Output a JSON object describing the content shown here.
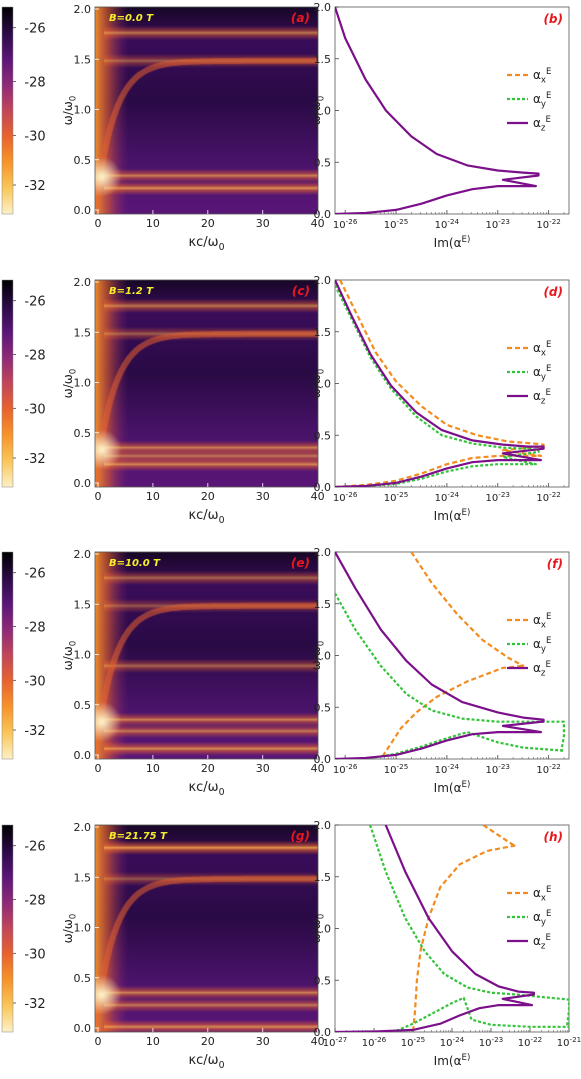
{
  "chart_data": [
    {
      "panel": "(a)",
      "type": "heatmap",
      "annotation": "B=0.0 T",
      "xlabel": "κc/ω0",
      "ylabel": "ω/ω0",
      "xlim": [
        0,
        40
      ],
      "ylim": [
        0,
        2.0
      ],
      "xticks": [
        "0",
        "10",
        "20",
        "30",
        "40"
      ],
      "yticks": [
        "0.0",
        "0.5",
        "1.0",
        "1.5",
        "2.0"
      ],
      "colorbar": {
        "ticks": [
          "-26",
          "-28",
          "-30",
          "-32"
        ]
      },
      "resonances": [
        {
          "omega": 0.25,
          "strength": 0.85
        },
        {
          "omega": 0.37,
          "strength": 0.75
        },
        {
          "omega": 1.48,
          "strength": 0.55
        },
        {
          "omega": 1.75,
          "strength": 0.7
        }
      ]
    },
    {
      "panel": "(b)",
      "type": "line",
      "xscale": "log",
      "xlabel": "Im(α^E)",
      "ylabel": "ω/ω0",
      "xlim": [
        -26.2,
        -21.6
      ],
      "ylim": [
        0,
        2.0
      ],
      "xticks": [
        "10^-26",
        "10^-25",
        "10^-24",
        "10^-23",
        "10^-22"
      ],
      "yticks": [
        "0.0",
        "0.5",
        "1.0",
        "1.5",
        "2.0"
      ],
      "legend": {
        "position": "right",
        "entries": [
          "α_x^E",
          "α_y^E",
          "α_z^E"
        ]
      },
      "series": [
        {
          "name": "α_z^E",
          "upper": [
            [
              -26.2,
              2.0
            ],
            [
              -26.0,
              1.7
            ],
            [
              -25.6,
              1.3
            ],
            [
              -25.2,
              1.0
            ],
            [
              -24.7,
              0.75
            ],
            [
              -24.2,
              0.58
            ],
            [
              -23.6,
              0.47
            ],
            [
              -23.0,
              0.42
            ],
            [
              -22.5,
              0.4
            ],
            [
              -22.2,
              0.39
            ]
          ],
          "lower": [
            [
              -26.2,
              0.0
            ],
            [
              -25.6,
              0.01
            ],
            [
              -25.0,
              0.04
            ],
            [
              -24.5,
              0.1
            ],
            [
              -24.0,
              0.18
            ],
            [
              -23.5,
              0.24
            ],
            [
              -23.0,
              0.27
            ]
          ],
          "loop_top": 0.39,
          "loop_low": 0.27,
          "loop_right": -22.2,
          "loop_tip": -22.9
        }
      ]
    },
    {
      "panel": "(c)",
      "type": "heatmap",
      "annotation": "B=1.2 T",
      "xlabel": "κc/ω0",
      "ylabel": "ω/ω0",
      "xlim": [
        0,
        40
      ],
      "ylim": [
        0,
        2.0
      ],
      "xticks": [
        "0",
        "10",
        "20",
        "30",
        "40"
      ],
      "yticks": [
        "0.0",
        "0.5",
        "1.0",
        "1.5",
        "2.0"
      ],
      "colorbar": {
        "ticks": [
          "-26",
          "-28",
          "-30",
          "-32"
        ]
      },
      "resonances": [
        {
          "omega": 0.22,
          "strength": 0.8
        },
        {
          "omega": 0.3,
          "strength": 0.7
        },
        {
          "omega": 0.38,
          "strength": 0.75
        },
        {
          "omega": 1.48,
          "strength": 0.55
        },
        {
          "omega": 1.75,
          "strength": 0.7
        }
      ]
    },
    {
      "panel": "(d)",
      "type": "line",
      "xscale": "log",
      "xlabel": "Im(α^E)",
      "ylabel": "ω/ω0",
      "xlim": [
        -26.2,
        -21.6
      ],
      "ylim": [
        0,
        2.0
      ],
      "xticks": [
        "10^-26",
        "10^-25",
        "10^-24",
        "10^-23",
        "10^-22"
      ],
      "yticks": [
        "0.0",
        "0.5",
        "1.0",
        "1.5",
        "2.0"
      ],
      "legend": {
        "position": "right",
        "entries": [
          "α_x^E",
          "α_y^E",
          "α_z^E"
        ]
      },
      "series": [
        {
          "name": "α_x^E",
          "upper": [
            [
              -26.1,
              2.0
            ],
            [
              -25.8,
              1.7
            ],
            [
              -25.4,
              1.3
            ],
            [
              -25.0,
              1.02
            ],
            [
              -24.5,
              0.78
            ],
            [
              -24.0,
              0.6
            ],
            [
              -23.4,
              0.5
            ],
            [
              -22.8,
              0.44
            ],
            [
              -22.3,
              0.42
            ],
            [
              -22.1,
              0.41
            ]
          ],
          "lower": [
            [
              -26.2,
              0.0
            ],
            [
              -25.6,
              0.02
            ],
            [
              -25.0,
              0.06
            ],
            [
              -24.5,
              0.13
            ],
            [
              -24.0,
              0.22
            ],
            [
              -23.5,
              0.28
            ],
            [
              -23.0,
              0.3
            ]
          ],
          "loop_top": 0.41,
          "loop_low": 0.3,
          "loop_right": -22.1,
          "loop_tip": -22.9
        },
        {
          "name": "α_y^E",
          "upper": [
            [
              -26.2,
              1.95
            ],
            [
              -25.9,
              1.65
            ],
            [
              -25.5,
              1.25
            ],
            [
              -25.1,
              0.95
            ],
            [
              -24.6,
              0.68
            ],
            [
              -24.1,
              0.5
            ],
            [
              -23.5,
              0.42
            ],
            [
              -22.9,
              0.38
            ],
            [
              -22.4,
              0.37
            ],
            [
              -22.2,
              0.36
            ]
          ],
          "lower": [
            [
              -26.2,
              0.0
            ],
            [
              -25.6,
              0.01
            ],
            [
              -25.0,
              0.03
            ],
            [
              -24.5,
              0.08
            ],
            [
              -24.0,
              0.15
            ],
            [
              -23.5,
              0.2
            ],
            [
              -23.0,
              0.22
            ]
          ],
          "loop_top": 0.36,
          "loop_low": 0.22,
          "loop_right": -22.2,
          "loop_tip": -22.9
        },
        {
          "name": "α_z^E",
          "upper": [
            [
              -26.2,
              2.0
            ],
            [
              -25.9,
              1.68
            ],
            [
              -25.5,
              1.28
            ],
            [
              -25.1,
              0.98
            ],
            [
              -24.6,
              0.72
            ],
            [
              -24.1,
              0.55
            ],
            [
              -23.5,
              0.45
            ],
            [
              -22.9,
              0.41
            ],
            [
              -22.4,
              0.39
            ],
            [
              -22.1,
              0.39
            ]
          ],
          "lower": [
            [
              -26.2,
              0.0
            ],
            [
              -25.6,
              0.01
            ],
            [
              -25.0,
              0.04
            ],
            [
              -24.5,
              0.1
            ],
            [
              -24.0,
              0.18
            ],
            [
              -23.5,
              0.24
            ],
            [
              -23.0,
              0.26
            ]
          ],
          "loop_top": 0.39,
          "loop_low": 0.26,
          "loop_right": -22.1,
          "loop_tip": -22.9
        }
      ]
    },
    {
      "panel": "(e)",
      "type": "heatmap",
      "annotation": "B=10.0 T",
      "xlabel": "κc/ω0",
      "ylabel": "ω/ω0",
      "xlim": [
        0,
        40
      ],
      "ylim": [
        0,
        2.0
      ],
      "xticks": [
        "0",
        "10",
        "20",
        "30",
        "40"
      ],
      "yticks": [
        "0.0",
        "0.5",
        "1.0",
        "1.5",
        "2.0"
      ],
      "colorbar": {
        "ticks": [
          "-26",
          "-28",
          "-30",
          "-32"
        ]
      },
      "resonances": [
        {
          "omega": 0.1,
          "strength": 0.8
        },
        {
          "omega": 0.27,
          "strength": 0.7
        },
        {
          "omega": 0.38,
          "strength": 0.75
        },
        {
          "omega": 0.9,
          "strength": 0.6
        },
        {
          "omega": 1.48,
          "strength": 0.5
        },
        {
          "omega": 1.75,
          "strength": 0.6
        }
      ]
    },
    {
      "panel": "(f)",
      "type": "line",
      "xscale": "log",
      "xlabel": "Im(α^E)",
      "ylabel": "ω/ω0",
      "xlim": [
        -26.2,
        -21.6
      ],
      "ylim": [
        0,
        2.0
      ],
      "xticks": [
        "10^-26",
        "10^-25",
        "10^-24",
        "10^-23",
        "10^-22"
      ],
      "yticks": [
        "0.0",
        "0.5",
        "1.0",
        "1.5",
        "2.0"
      ],
      "legend": {
        "position": "right",
        "entries": [
          "α_x^E",
          "α_y^E",
          "α_z^E"
        ]
      },
      "series": [
        {
          "name": "α_x^E",
          "upper": [
            [
              -24.7,
              2.0
            ],
            [
              -24.3,
              1.7
            ],
            [
              -23.8,
              1.4
            ],
            [
              -23.3,
              1.15
            ],
            [
              -22.8,
              0.98
            ],
            [
              -22.5,
              0.9
            ]
          ],
          "lower": [
            [
              -25.3,
              0.0
            ],
            [
              -25.1,
              0.15
            ],
            [
              -24.9,
              0.3
            ],
            [
              -24.6,
              0.45
            ],
            [
              -24.2,
              0.6
            ],
            [
              -23.6,
              0.75
            ],
            [
              -22.9,
              0.88
            ],
            [
              -22.5,
              0.9
            ]
          ],
          "loop_top": 0.9,
          "loop_low": 0.9,
          "loop_right": -22.5,
          "loop_tip": -22.5
        },
        {
          "name": "α_y^E",
          "upper": [
            [
              -26.2,
              1.6
            ],
            [
              -25.8,
              1.25
            ],
            [
              -25.3,
              0.9
            ],
            [
              -24.8,
              0.63
            ],
            [
              -24.3,
              0.47
            ],
            [
              -23.7,
              0.39
            ],
            [
              -23.0,
              0.36
            ],
            [
              -22.3,
              0.36
            ],
            [
              -21.7,
              0.36
            ]
          ],
          "lower": [
            [
              -25.6,
              0.0
            ],
            [
              -25.0,
              0.05
            ],
            [
              -24.5,
              0.12
            ],
            [
              -24.0,
              0.2
            ],
            [
              -23.6,
              0.26
            ],
            [
              -23.0,
              0.16
            ],
            [
              -22.5,
              0.11
            ],
            [
              -21.7,
              0.08
            ]
          ],
          "loop_top": 0.36,
          "loop_low": 0.08,
          "loop_right": -21.7,
          "loop_tip": -21.7
        },
        {
          "name": "α_z^E",
          "upper": [
            [
              -26.2,
              2.0
            ],
            [
              -25.8,
              1.65
            ],
            [
              -25.3,
              1.25
            ],
            [
              -24.8,
              0.95
            ],
            [
              -24.3,
              0.72
            ],
            [
              -23.7,
              0.55
            ],
            [
              -23.0,
              0.45
            ],
            [
              -22.5,
              0.4
            ],
            [
              -22.1,
              0.38
            ]
          ],
          "lower": [
            [
              -26.2,
              0.0
            ],
            [
              -25.6,
              0.01
            ],
            [
              -25.0,
              0.04
            ],
            [
              -24.5,
              0.1
            ],
            [
              -24.0,
              0.18
            ],
            [
              -23.5,
              0.24
            ],
            [
              -23.0,
              0.26
            ]
          ],
          "loop_top": 0.38,
          "loop_low": 0.26,
          "loop_right": -22.1,
          "loop_tip": -22.9
        }
      ]
    },
    {
      "panel": "(g)",
      "type": "heatmap",
      "annotation": "B=21.75 T",
      "xlabel": "κc/ω0",
      "ylabel": "ω/ω0",
      "xlim": [
        0,
        40
      ],
      "ylim": [
        0,
        2.0
      ],
      "xticks": [
        "0",
        "10",
        "20",
        "30",
        "40"
      ],
      "yticks": [
        "0.0",
        "0.5",
        "1.0",
        "1.5",
        "2.0"
      ],
      "colorbar": {
        "ticks": [
          "-26",
          "-28",
          "-30",
          "-32"
        ]
      },
      "resonances": [
        {
          "omega": 0.05,
          "strength": 0.8
        },
        {
          "omega": 0.26,
          "strength": 0.7
        },
        {
          "omega": 0.38,
          "strength": 0.75
        },
        {
          "omega": 1.48,
          "strength": 0.5
        },
        {
          "omega": 1.78,
          "strength": 0.9
        }
      ]
    },
    {
      "panel": "(h)",
      "type": "line",
      "xscale": "log",
      "xlabel": "Im(α^E)",
      "ylabel": "ω/ω0",
      "xlim": [
        -27,
        -21
      ],
      "ylim": [
        0,
        2.0
      ],
      "xticks": [
        "10^-27",
        "10^-26",
        "10^-25",
        "10^-24",
        "10^-23",
        "10^-22",
        "10^-21"
      ],
      "yticks": [
        "0.0",
        "0.5",
        "1.0",
        "1.5",
        "2.0"
      ],
      "legend": {
        "position": "right",
        "entries": [
          "α_x^E",
          "α_y^E",
          "α_z^E"
        ]
      },
      "series": [
        {
          "name": "α_x^E",
          "upper": [
            [
              -23.2,
              2.0
            ],
            [
              -22.8,
              1.9
            ],
            [
              -22.4,
              1.8
            ]
          ],
          "lower": [
            [
              -25.0,
              0.0
            ],
            [
              -24.95,
              0.2
            ],
            [
              -24.9,
              0.5
            ],
            [
              -24.8,
              0.8
            ],
            [
              -24.6,
              1.1
            ],
            [
              -24.3,
              1.4
            ],
            [
              -23.8,
              1.62
            ],
            [
              -23.1,
              1.75
            ],
            [
              -22.4,
              1.8
            ]
          ],
          "loop_top": 1.8,
          "loop_low": 1.8,
          "loop_right": -22.4,
          "loop_tip": -22.4
        },
        {
          "name": "α_y^E",
          "upper": [
            [
              -26.1,
              2.0
            ],
            [
              -25.7,
              1.55
            ],
            [
              -25.2,
              1.1
            ],
            [
              -24.7,
              0.78
            ],
            [
              -24.2,
              0.56
            ],
            [
              -23.6,
              0.43
            ],
            [
              -23.0,
              0.38
            ],
            [
              -22.3,
              0.36
            ]
          ],
          "lower": [
            [
              -25.5,
              0.0
            ],
            [
              -25.0,
              0.08
            ],
            [
              -24.5,
              0.18
            ],
            [
              -24.0,
              0.28
            ],
            [
              -23.7,
              0.33
            ],
            [
              -23.5,
              0.12
            ],
            [
              -23.0,
              0.07
            ],
            [
              -22.0,
              0.05
            ],
            [
              -21.0,
              0.05
            ]
          ],
          "loop_top": 0.36,
          "loop_low": 0.05,
          "loop_right": -21.0,
          "loop_tip": -21.0
        },
        {
          "name": "α_z^E",
          "upper": [
            [
              -25.7,
              2.0
            ],
            [
              -25.2,
              1.55
            ],
            [
              -24.6,
              1.1
            ],
            [
              -24.0,
              0.78
            ],
            [
              -23.4,
              0.56
            ],
            [
              -22.8,
              0.44
            ],
            [
              -22.3,
              0.39
            ],
            [
              -21.9,
              0.38
            ]
          ],
          "lower": [
            [
              -27.0,
              0.0
            ],
            [
              -26.0,
              0.005
            ],
            [
              -25.0,
              0.02
            ],
            [
              -24.3,
              0.08
            ],
            [
              -23.8,
              0.16
            ],
            [
              -23.3,
              0.23
            ],
            [
              -22.8,
              0.26
            ]
          ],
          "loop_top": 0.38,
          "loop_low": 0.26,
          "loop_right": -21.9,
          "loop_tip": -22.7
        }
      ]
    }
  ],
  "styles": {
    "x_color": "#F28C1E",
    "y_color": "#33C43A",
    "z_color": "#7B108A",
    "panel_label_color": "#E8191E",
    "annotation_color": "#F2EE2A",
    "colormap": [
      "#000000",
      "#2a0a45",
      "#5a1677",
      "#8e2a78",
      "#c2455a",
      "#e8632e",
      "#f7942a",
      "#f9c65a",
      "#fdf1c8"
    ]
  }
}
